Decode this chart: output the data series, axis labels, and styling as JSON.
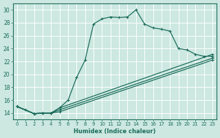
{
  "xlabel": "Humidex (Indice chaleur)",
  "ylabel": "",
  "bg_color": "#cce8e0",
  "grid_color": "#ffffff",
  "line_color": "#1a6b5a",
  "xlim": [
    -0.5,
    23.5
  ],
  "ylim": [
    13.0,
    31.0
  ],
  "xticks": [
    0,
    1,
    2,
    3,
    4,
    5,
    6,
    7,
    8,
    9,
    10,
    11,
    12,
    13,
    14,
    15,
    16,
    17,
    18,
    19,
    20,
    21,
    22,
    23
  ],
  "yticks": [
    14,
    16,
    18,
    20,
    22,
    24,
    26,
    28,
    30
  ],
  "series": [
    {
      "x": [
        0,
        1,
        2,
        3,
        4,
        5,
        6,
        7,
        8,
        9,
        10,
        11,
        12,
        13,
        14,
        15,
        16,
        17,
        18,
        19,
        20,
        21,
        22,
        23
      ],
      "y": [
        15.0,
        14.5,
        13.9,
        14.0,
        14.0,
        14.8,
        16.0,
        19.5,
        22.2,
        27.8,
        28.6,
        28.9,
        28.8,
        28.9,
        30.0,
        27.8,
        27.2,
        27.0,
        26.7,
        24.0,
        23.8,
        23.1,
        22.8,
        22.8
      ]
    },
    {
      "x": [
        0,
        2,
        3,
        4,
        5,
        23
      ],
      "y": [
        15.0,
        13.9,
        14.0,
        14.0,
        14.8,
        23.1
      ]
    },
    {
      "x": [
        0,
        2,
        3,
        4,
        5,
        23
      ],
      "y": [
        15.0,
        13.9,
        14.0,
        14.0,
        14.5,
        22.5
      ]
    },
    {
      "x": [
        0,
        2,
        3,
        4,
        5,
        23
      ],
      "y": [
        15.0,
        13.9,
        14.0,
        14.0,
        14.2,
        22.2
      ]
    }
  ]
}
